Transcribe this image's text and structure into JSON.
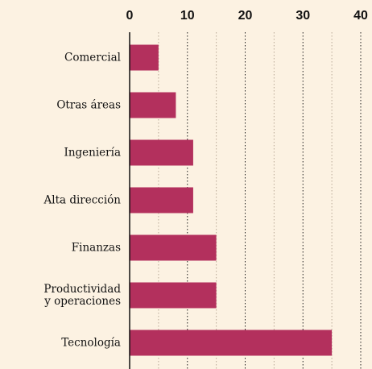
{
  "chart_data": {
    "type": "bar",
    "orientation": "horizontal",
    "categories": [
      "Comercial",
      "Otras áreas",
      "Ingeniería",
      "Alta dirección",
      "Finanzas",
      "Productividad\ny operaciones",
      "Tecnología"
    ],
    "values": [
      5,
      8,
      11,
      11,
      15,
      15,
      35
    ],
    "color": "#b3305d",
    "xlim": [
      0,
      40
    ],
    "xticks": [
      0,
      10,
      20,
      30,
      40
    ],
    "minor_xticks": [
      5,
      15,
      25,
      35
    ],
    "grid": true
  }
}
